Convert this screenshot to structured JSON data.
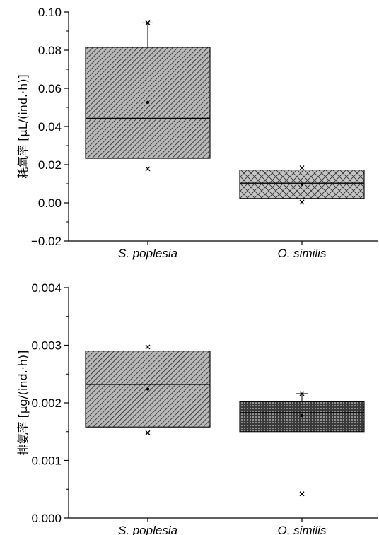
{
  "chart_data": [
    {
      "type": "box",
      "ylabel": "耗氧率 [μL/(ind.·h)]",
      "ylim": [
        -0.02,
        0.1
      ],
      "yticks": [
        "−0.02",
        "0.00",
        "0.02",
        "0.04",
        "0.06",
        "0.08",
        "0.10"
      ],
      "categories": [
        "S. poplesia",
        "O. similis"
      ],
      "series": [
        {
          "q1": 0.0233,
          "median": 0.0443,
          "q3": 0.0815,
          "mean": 0.0526,
          "whisker_low": 0.0233,
          "whisker_high": 0.0943,
          "min": 0.0178,
          "max": 0.0943,
          "outliers": []
        },
        {
          "q1": 0.0023,
          "median": 0.0103,
          "q3": 0.0172,
          "mean": 0.0098,
          "whisker_low": 0.0023,
          "whisker_high": 0.0172,
          "min": 0.0004,
          "max": 0.0183,
          "outliers": []
        }
      ]
    },
    {
      "type": "box",
      "ylabel": "排氨率 [μg/(ind.·h)]",
      "ylim": [
        0.0,
        0.004
      ],
      "yticks": [
        "0.000",
        "0.001",
        "0.002",
        "0.003",
        "0.004"
      ],
      "categories": [
        "S. poplesia",
        "O. similis"
      ],
      "series": [
        {
          "q1": 0.00158,
          "median": 0.00232,
          "q3": 0.0029,
          "mean": 0.00224,
          "whisker_low": 0.00158,
          "whisker_high": 0.0029,
          "min": 0.00148,
          "max": 0.00297,
          "outliers": []
        },
        {
          "q1": 0.0015,
          "median": 0.00183,
          "q3": 0.00202,
          "mean": 0.00178,
          "whisker_low": 0.0015,
          "whisker_high": 0.00216,
          "min": 0.00042,
          "max": 0.00216,
          "outliers": []
        }
      ]
    }
  ]
}
